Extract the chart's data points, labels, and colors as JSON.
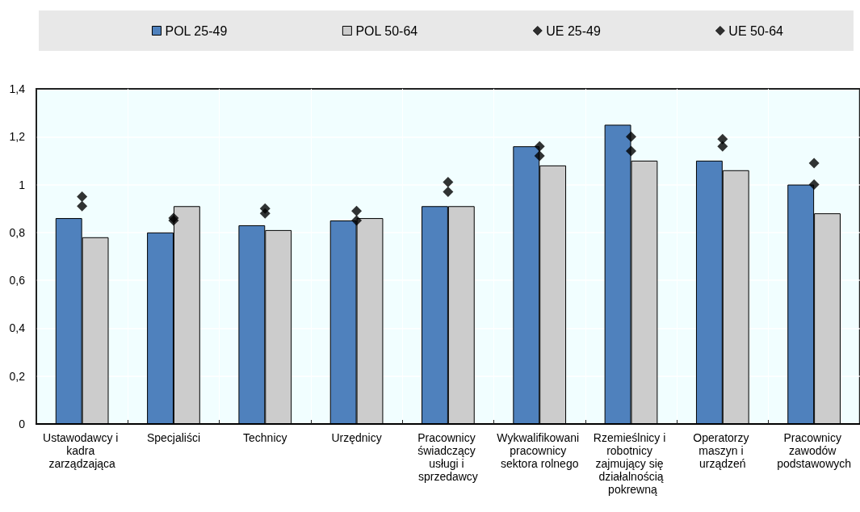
{
  "chart_data": {
    "type": "bar",
    "categories": [
      "Ustawodawcy i kadra zarządzająca",
      "Specjaliści",
      "Technicy",
      "Urzędnicy",
      "Pracownicy świadczący usługi i sprzedawcy",
      "Wykwalifikowani pracownicy sektora rolnego",
      "Rzemieślnicy i robotnicy zajmujący się działalnością pokrewną",
      "Operatorzy maszyn i urządzeń",
      "Pracownicy zawodów podstawowych"
    ],
    "series": [
      {
        "name": "POL 25-49",
        "color": "#4f81bd",
        "values": [
          0.86,
          0.8,
          0.83,
          0.85,
          0.91,
          1.16,
          1.25,
          1.1,
          1.0
        ]
      },
      {
        "name": "POL 50-64",
        "color": "#cccccc",
        "values": [
          0.78,
          0.91,
          0.81,
          0.86,
          0.91,
          1.08,
          1.1,
          1.06,
          0.88
        ]
      },
      {
        "name": "UE 25-49",
        "type": "scatter",
        "color": "#000000",
        "x": [
          "Ustawodawcy i kadra zarządzająca",
          "Specjaliści",
          "Technicy",
          "Urzędnicy",
          "Pracownicy świadczący usługi i sprzedawcy",
          "Wykwalifikowani pracownicy sektora rolnego",
          "Rzemieślnicy i robotnicy zajmujący się działalnością pokrewną",
          "Operatorzy maszyn i urządzeń",
          "Pracownicy zawodów podstawowych"
        ],
        "values": [
          0.95,
          0.86,
          0.9,
          0.89,
          1.01,
          1.16,
          1.2,
          1.19,
          1.09
        ]
      },
      {
        "name": "UE 50-64",
        "type": "scatter",
        "color": "#000000",
        "x": [
          "Ustawodawcy i kadra zarządzająca",
          "Specjaliści",
          "Technicy",
          "Urzędnicy",
          "Pracownicy świadczący usługi i sprzedawcy",
          "Wykwalifikowani pracownicy sektora rolnego",
          "Rzemieślnicy i robotnicy zajmujący się działalnością pokrewną",
          "Operatorzy maszyn i urządzeń",
          "Pracownicy zawodów podstawowych"
        ],
        "values": [
          0.91,
          0.85,
          0.88,
          0.85,
          0.97,
          1.12,
          1.14,
          1.16,
          1.0
        ]
      }
    ],
    "ylim": [
      0,
      1.4
    ],
    "yticks": [
      0,
      {
        "value": 0.2,
        "label": "0,2"
      },
      {
        "value": 0.4,
        "label": "0,4"
      },
      {
        "value": 0.6,
        "label": "0,6"
      },
      {
        "value": 0.8,
        "label": "0,8"
      },
      1,
      {
        "value": 1.2,
        "label": "1,2"
      },
      {
        "value": 1.4,
        "label": "1,4"
      }
    ],
    "grid": true,
    "legend": "top",
    "marker": "diamond"
  }
}
